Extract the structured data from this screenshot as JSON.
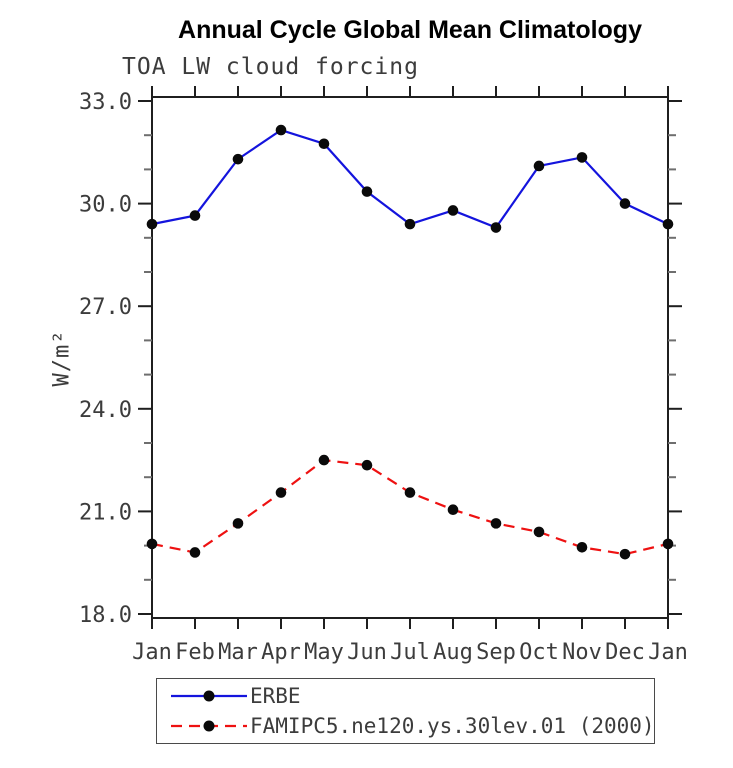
{
  "title": "Annual Cycle Global Mean Climatology",
  "subtitle": "TOA LW cloud forcing",
  "legend": [
    {
      "label": "ERBE",
      "color": "#1414dd",
      "style": "solid"
    },
    {
      "label": "FAMIPC5.ne120.ys.30lev.01 (2000)",
      "color": "#ee1111",
      "style": "dashed"
    }
  ],
  "chart_data": {
    "type": "line",
    "title": "Annual Cycle Global Mean Climatology",
    "subtitle": "TOA LW cloud forcing",
    "xlabel": "",
    "ylabel": "W/m²",
    "categories": [
      "Jan",
      "Feb",
      "Mar",
      "Apr",
      "May",
      "Jun",
      "Jul",
      "Aug",
      "Sep",
      "Oct",
      "Nov",
      "Dec",
      "Jan"
    ],
    "ylim": [
      18.0,
      33.0
    ],
    "ytick_major_values": [
      33.0,
      30.0,
      27.0,
      24.0,
      21.0,
      18.0
    ],
    "ytick_major_labels": [
      "33.0",
      "30.0",
      "27.0",
      "24.0",
      "21.0",
      "18.0"
    ],
    "ytick_minor_step": 1.0,
    "grid": false,
    "legend_position": "below-bottom-left",
    "marker": "filled-circle",
    "marker_color": "#0a0a0a",
    "series": [
      {
        "name": "ERBE",
        "color": "#1414dd",
        "line_style": "solid",
        "values": [
          29.4,
          29.65,
          31.3,
          32.15,
          31.75,
          30.35,
          29.4,
          29.8,
          29.3,
          31.1,
          31.35,
          30.0,
          29.4
        ]
      },
      {
        "name": "FAMIPC5.ne120.ys.30lev.01 (2000)",
        "color": "#ee1111",
        "line_style": "dashed",
        "values": [
          20.05,
          19.8,
          20.65,
          21.55,
          22.5,
          22.35,
          21.55,
          21.05,
          20.65,
          20.4,
          19.95,
          19.75,
          20.05
        ]
      }
    ]
  }
}
